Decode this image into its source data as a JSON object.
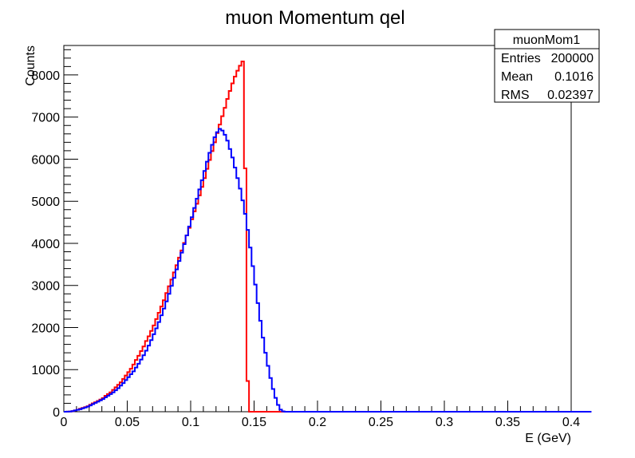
{
  "chart_data": {
    "type": "histogram",
    "title": "muon Momentum qel",
    "xlabel": "E (GeV)",
    "ylabel": "Counts",
    "xlim": [
      0,
      0.4
    ],
    "ylim": [
      0,
      8700
    ],
    "x_ticks": [
      "0",
      "0.05",
      "0.1",
      "0.15",
      "0.2",
      "0.25",
      "0.3",
      "0.35",
      "0.4"
    ],
    "y_ticks": [
      "0",
      "1000",
      "2000",
      "3000",
      "4000",
      "5000",
      "6000",
      "7000",
      "8000"
    ],
    "bin_width": 0.002,
    "series": [
      {
        "color": "#ff0000",
        "values": [
          0,
          2,
          5,
          15,
          30,
          48,
          70,
          90,
          110,
          130,
          165,
          200,
          225,
          255,
          290,
          325,
          380,
          420,
          460,
          520,
          580,
          640,
          700,
          780,
          860,
          940,
          1020,
          1120,
          1230,
          1330,
          1440,
          1550,
          1680,
          1790,
          1920,
          2050,
          2200,
          2350,
          2500,
          2650,
          2820,
          2980,
          3140,
          3310,
          3480,
          3660,
          3830,
          4010,
          4190,
          4370,
          4570,
          4760,
          4940,
          5140,
          5340,
          5550,
          5770,
          5980,
          6190,
          6400,
          6620,
          6820,
          7020,
          7220,
          7430,
          7620,
          7800,
          7960,
          8100,
          8220,
          8320,
          5780,
          730,
          0,
          0,
          0,
          0,
          0,
          0,
          0,
          0,
          0,
          0,
          0,
          0,
          0,
          0,
          0,
          0,
          0,
          0,
          0,
          0,
          0,
          0,
          0,
          0,
          0,
          0,
          0,
          0,
          0,
          0,
          0,
          0,
          0,
          0,
          0,
          0,
          0,
          0,
          0,
          0,
          0,
          0,
          0,
          0,
          0,
          0,
          0,
          0,
          0,
          0,
          0,
          0,
          0,
          0,
          0,
          0,
          0,
          0,
          0,
          0,
          0,
          0,
          0,
          0,
          0,
          0,
          0,
          0,
          0,
          0,
          0,
          0,
          0,
          0,
          0,
          0,
          0,
          0,
          0,
          0,
          0,
          0,
          0,
          0,
          0,
          0,
          0,
          0,
          0,
          0,
          0,
          0,
          0,
          0,
          0,
          0,
          0,
          0,
          0,
          0,
          0,
          0,
          0,
          0,
          0,
          0,
          0,
          0,
          0,
          0,
          0,
          0,
          0,
          0,
          0,
          0,
          0,
          0,
          0,
          0,
          0,
          0,
          0,
          0,
          0,
          0,
          0,
          0,
          0,
          0,
          0,
          0,
          0,
          0
        ]
      },
      {
        "color": "#0000ff",
        "values": [
          0,
          2,
          5,
          15,
          30,
          45,
          60,
          80,
          100,
          120,
          150,
          180,
          210,
          240,
          270,
          300,
          340,
          380,
          420,
          460,
          510,
          560,
          620,
          680,
          750,
          820,
          890,
          960,
          1050,
          1140,
          1240,
          1340,
          1450,
          1570,
          1700,
          1840,
          1980,
          2130,
          2290,
          2450,
          2620,
          2800,
          2990,
          3180,
          3380,
          3580,
          3780,
          3980,
          4190,
          4400,
          4620,
          4840,
          5060,
          5280,
          5500,
          5720,
          5940,
          6150,
          6340,
          6520,
          6640,
          6720,
          6680,
          6580,
          6440,
          6240,
          6040,
          5800,
          5550,
          5300,
          5020,
          4700,
          4320,
          3900,
          3460,
          3020,
          2580,
          2160,
          1760,
          1400,
          1090,
          800,
          540,
          330,
          160,
          50,
          10,
          0,
          0,
          0,
          0,
          0,
          0,
          0,
          0,
          0,
          0,
          0,
          0,
          0,
          0,
          0,
          0,
          0,
          0,
          0,
          0,
          0,
          0,
          0,
          0,
          0,
          0,
          0,
          0,
          0,
          0,
          0,
          0,
          0,
          0,
          0,
          0,
          0,
          0,
          0,
          0,
          0,
          0,
          0,
          0,
          0,
          0,
          0,
          0,
          0,
          0,
          0,
          0,
          0,
          0,
          0,
          0,
          0,
          0,
          0,
          0,
          0,
          0,
          0,
          0,
          0,
          0,
          0,
          0,
          0,
          0,
          0,
          0,
          0,
          0,
          0,
          0,
          0,
          0,
          0,
          0,
          0,
          0,
          0,
          0,
          0,
          0,
          0,
          0,
          0,
          0,
          0,
          0,
          0,
          0,
          0,
          0,
          0,
          0,
          0,
          0,
          0,
          0,
          0,
          0,
          0,
          0,
          0,
          0,
          0,
          0,
          0,
          0,
          0,
          0,
          0,
          0,
          0,
          0,
          0,
          0,
          0
        ]
      }
    ],
    "stats_box": {
      "name": "muonMom1",
      "rows": [
        {
          "label": "Entries",
          "value": "200000"
        },
        {
          "label": "Mean",
          "value": "0.1016"
        },
        {
          "label": "RMS",
          "value": "0.02397"
        }
      ]
    },
    "grid": false
  }
}
